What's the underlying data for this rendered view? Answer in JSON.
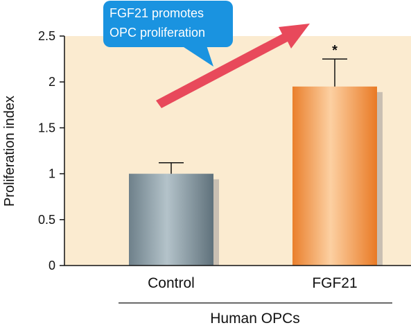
{
  "chart_data": {
    "type": "bar",
    "categories": [
      "Control",
      "FGF21"
    ],
    "values": [
      1.0,
      1.95
    ],
    "error_bars": [
      0.12,
      0.3
    ],
    "significance": [
      "",
      "*"
    ],
    "title": "",
    "xlabel": "Human OPCs",
    "ylabel": "Proliferation index",
    "ylim": [
      0,
      2.5
    ],
    "yticks": [
      0,
      0.5,
      1,
      1.5,
      2,
      2.5
    ],
    "ytick_labels": [
      "0",
      "0.5",
      "1",
      "1.5",
      "2",
      "2.5"
    ],
    "grid": false,
    "bar_styles": [
      "steel-gray gradient",
      "orange gradient"
    ],
    "colors": {
      "plot_background": "#fbebd0",
      "control_bar": "#7d909a",
      "control_bar_highlight": "#b4c3ca",
      "fgf21_bar": "#ee8a3a",
      "fgf21_bar_highlight": "#fcd0a2",
      "bar_shadow": "#c9bfb2",
      "arrow": "#e8495b",
      "callout": "#1a93e0"
    },
    "annotation": {
      "text_lines": [
        "FGF21 promotes",
        "OPC proliferation"
      ],
      "arrow_direction": "up-right"
    }
  }
}
